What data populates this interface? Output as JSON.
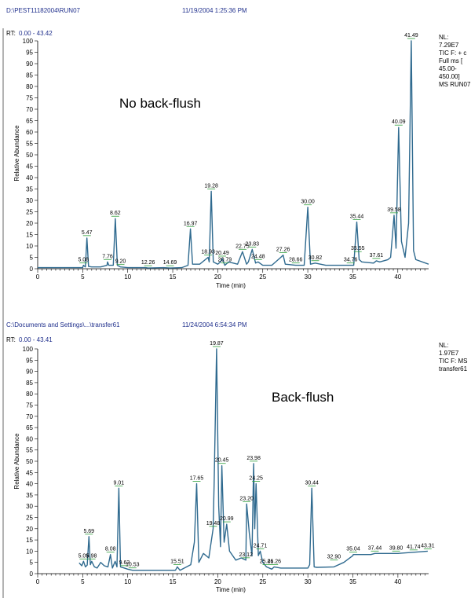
{
  "chart_data": [
    {
      "type": "line",
      "header": {
        "path": "D:\\PEST11182004\\RUN07",
        "timestamp": "11/19/2004 1:25:36 PM"
      },
      "rt_range": {
        "label": "RT:",
        "range": "0.00 - 43.42"
      },
      "title": "No back-flush",
      "nl_info": [
        "NL:",
        "7.29E7",
        "TIC F: + c",
        "Full ms [",
        "45.00-",
        "450.00]",
        "MS RUN07"
      ],
      "xlabel": "Time (min)",
      "ylabel": "Relative Abundance",
      "xlim": [
        0,
        43.42
      ],
      "ylim": [
        0,
        100
      ],
      "xticks": [
        0,
        5,
        10,
        15,
        20,
        25,
        30,
        35,
        40
      ],
      "yticks": [
        0,
        5,
        10,
        15,
        20,
        25,
        30,
        35,
        40,
        45,
        50,
        55,
        60,
        65,
        70,
        75,
        80,
        85,
        90,
        95,
        100
      ],
      "series": [
        {
          "x": [
            0,
            2,
            4,
            5.0,
            5.08,
            5.3,
            5.47,
            5.65,
            6,
            7,
            7.7,
            7.76,
            7.9,
            8.4,
            8.62,
            8.85,
            9.2,
            10,
            12,
            12.26,
            14,
            14.69,
            16,
            16.7,
            16.97,
            17.2,
            18,
            18.93,
            19.05,
            19.28,
            19.5,
            20,
            20.3,
            20.49,
            20.79,
            21.2,
            22.2,
            22.75,
            23.2,
            23.4,
            23.83,
            24.2,
            24.48,
            25,
            26,
            27.0,
            27.26,
            27.5,
            28.66,
            29.6,
            30.0,
            30.3,
            30.82,
            32,
            34.76,
            35.1,
            35.44,
            35.7,
            36,
            37.3,
            37.61,
            38,
            38.9,
            39.2,
            39.58,
            39.8,
            40.09,
            40.4,
            40.8,
            41.2,
            41.49,
            41.75,
            42,
            43.42
          ],
          "y": [
            0.5,
            0.5,
            0.5,
            0.5,
            1.5,
            0.8,
            13.5,
            1.0,
            0.8,
            0.8,
            1.5,
            3,
            1.5,
            1.5,
            22,
            1.5,
            0.8,
            0.5,
            0.5,
            0.3,
            0.5,
            0.3,
            0.5,
            1.5,
            17.5,
            2,
            2,
            5,
            3,
            34,
            3,
            2,
            3,
            4.5,
            1.5,
            3,
            2,
            7.5,
            2,
            3,
            8.5,
            2.5,
            3,
            1.5,
            1.5,
            5,
            6,
            2,
            1.5,
            1.5,
            27,
            2,
            2.5,
            1.5,
            1.5,
            1.5,
            20.5,
            4,
            3,
            2.5,
            3.5,
            3,
            4,
            5,
            23.5,
            9,
            62,
            12,
            5,
            20,
            100,
            8,
            4,
            2
          ]
        }
      ],
      "peak_labels": [
        {
          "x": 5.08,
          "y": 1.5,
          "text": "5.08"
        },
        {
          "x": 5.47,
          "y": 13.5,
          "text": "5.47"
        },
        {
          "x": 7.76,
          "y": 3,
          "text": "7.76"
        },
        {
          "x": 8.62,
          "y": 22,
          "text": "8.62"
        },
        {
          "x": 9.2,
          "y": 0.8,
          "text": "9.20"
        },
        {
          "x": 12.26,
          "y": 0.3,
          "text": "12.26"
        },
        {
          "x": 14.69,
          "y": 0.3,
          "text": "14.69"
        },
        {
          "x": 16.97,
          "y": 17.5,
          "text": "16.97"
        },
        {
          "x": 18.93,
          "y": 5,
          "text": "18.93"
        },
        {
          "x": 19.28,
          "y": 34,
          "text": "19.28"
        },
        {
          "x": 20.49,
          "y": 4.5,
          "text": "20.49"
        },
        {
          "x": 20.79,
          "y": 1.5,
          "text": "20.79"
        },
        {
          "x": 22.75,
          "y": 7.5,
          "text": "22.75"
        },
        {
          "x": 23.83,
          "y": 8.5,
          "text": "23.83"
        },
        {
          "x": 24.48,
          "y": 3,
          "text": "24.48"
        },
        {
          "x": 27.26,
          "y": 6,
          "text": "27.26"
        },
        {
          "x": 28.66,
          "y": 1.5,
          "text": "28.66"
        },
        {
          "x": 30.0,
          "y": 27,
          "text": "30.00"
        },
        {
          "x": 30.82,
          "y": 2.5,
          "text": "30.82"
        },
        {
          "x": 34.76,
          "y": 1.5,
          "text": "34.76"
        },
        {
          "x": 35.44,
          "y": 20.5,
          "text": "35.44"
        },
        {
          "x": 35.55,
          "y": 6.5,
          "text": "35.55"
        },
        {
          "x": 37.61,
          "y": 3.5,
          "text": "37.61"
        },
        {
          "x": 39.58,
          "y": 23.5,
          "text": "39.58"
        },
        {
          "x": 40.09,
          "y": 62,
          "text": "40.09"
        },
        {
          "x": 41.49,
          "y": 100,
          "text": "41.49"
        }
      ]
    },
    {
      "type": "line",
      "header": {
        "path": "C:\\Documents and Settings\\...\\transfer61",
        "timestamp": "11/24/2004 6:54:34 PM"
      },
      "rt_range": {
        "label": "RT:",
        "range": "0.00 - 43.41"
      },
      "title": "Back-flush",
      "nl_info": [
        "NL:",
        "1.97E7",
        "TIC F:  MS",
        "transfer61"
      ],
      "xlabel": "Time (min)",
      "ylabel": "Relative Abundance",
      "xlim": [
        0,
        43.41
      ],
      "ylim": [
        0,
        100
      ],
      "xticks": [
        0,
        5,
        10,
        15,
        20,
        25,
        30,
        35,
        40
      ],
      "yticks": [
        0,
        5,
        10,
        15,
        20,
        25,
        30,
        35,
        40,
        45,
        50,
        55,
        60,
        65,
        70,
        75,
        80,
        85,
        90,
        95,
        100
      ],
      "series": [
        {
          "x": [
            4.6,
            4.9,
            5.09,
            5.3,
            5.5,
            5.69,
            5.85,
            6.0,
            6.3,
            6.6,
            7.0,
            7.4,
            7.8,
            8.08,
            8.3,
            8.6,
            8.8,
            9.01,
            9.2,
            9.63,
            10,
            10.53,
            12,
            14,
            15.3,
            15.51,
            15.8,
            17,
            17.4,
            17.65,
            17.9,
            18.4,
            19.0,
            19.48,
            19.6,
            19.87,
            20.1,
            20.3,
            20.45,
            20.7,
            20.99,
            21.3,
            22,
            22.6,
            23.12,
            23.2,
            23.5,
            23.8,
            23.98,
            24.1,
            24.25,
            24.5,
            24.71,
            25,
            25.41,
            26,
            26.26,
            27,
            28,
            29,
            30,
            30.2,
            30.44,
            30.7,
            31,
            32.9,
            34,
            35,
            35.04,
            37,
            37.44,
            39.8,
            40,
            41.74,
            43.31
          ],
          "y": [
            4.8,
            3.5,
            5.5,
            3,
            3.8,
            16.5,
            4,
            5.5,
            3,
            2.5,
            5,
            3.5,
            3,
            8.5,
            2.5,
            5.5,
            3,
            38,
            3,
            2.5,
            2,
            1.5,
            1.5,
            1.5,
            1.5,
            3,
            1.5,
            4,
            14,
            40,
            5,
            9,
            7,
            20,
            42,
            100,
            30,
            12,
            48,
            14,
            22,
            10,
            6,
            7,
            6,
            31,
            18,
            8,
            49,
            20,
            40,
            8,
            10,
            5,
            3,
            2,
            3,
            2.5,
            2.5,
            2.5,
            2.5,
            4,
            38,
            3,
            2.8,
            3,
            5,
            8,
            8.5,
            8.5,
            9,
            9,
            9,
            9.5,
            10
          ]
        }
      ],
      "peak_labels": [
        {
          "x": 5.09,
          "y": 5.5,
          "text": "5.09"
        },
        {
          "x": 5.69,
          "y": 16.5,
          "text": "5.69"
        },
        {
          "x": 5.98,
          "y": 5.5,
          "text": "5.98"
        },
        {
          "x": 8.08,
          "y": 8.5,
          "text": "8.08"
        },
        {
          "x": 9.01,
          "y": 38,
          "text": "9.01"
        },
        {
          "x": 9.63,
          "y": 2.5,
          "text": "9.63"
        },
        {
          "x": 10.53,
          "y": 1.5,
          "text": "10.53"
        },
        {
          "x": 15.51,
          "y": 3,
          "text": "15.51"
        },
        {
          "x": 17.65,
          "y": 40,
          "text": "17.65"
        },
        {
          "x": 19.48,
          "y": 20,
          "text": "19.48"
        },
        {
          "x": 19.87,
          "y": 100,
          "text": "19.87"
        },
        {
          "x": 20.45,
          "y": 48,
          "text": "20.45"
        },
        {
          "x": 20.99,
          "y": 22,
          "text": "20.99"
        },
        {
          "x": 23.12,
          "y": 6,
          "text": "23.12"
        },
        {
          "x": 23.2,
          "y": 31,
          "text": "23.20"
        },
        {
          "x": 23.98,
          "y": 49,
          "text": "23.98"
        },
        {
          "x": 24.25,
          "y": 40,
          "text": "24.25"
        },
        {
          "x": 24.71,
          "y": 10,
          "text": "24.71"
        },
        {
          "x": 25.41,
          "y": 3,
          "text": "25.41"
        },
        {
          "x": 26.26,
          "y": 3,
          "text": "26.26"
        },
        {
          "x": 30.44,
          "y": 38,
          "text": "30.44"
        },
        {
          "x": 32.9,
          "y": 5,
          "text": "32.90"
        },
        {
          "x": 35.04,
          "y": 8.5,
          "text": "35.04"
        },
        {
          "x": 37.44,
          "y": 9,
          "text": "37.44"
        },
        {
          "x": 39.8,
          "y": 9,
          "text": "39.80"
        },
        {
          "x": 41.74,
          "y": 9.5,
          "text": "41.74"
        },
        {
          "x": 43.31,
          "y": 10,
          "text": "43.31"
        }
      ],
      "colors": {
        "trace": "#2f6a8f",
        "label_tick": "#2e9e3a",
        "header": "#1f2f8c"
      }
    }
  ]
}
